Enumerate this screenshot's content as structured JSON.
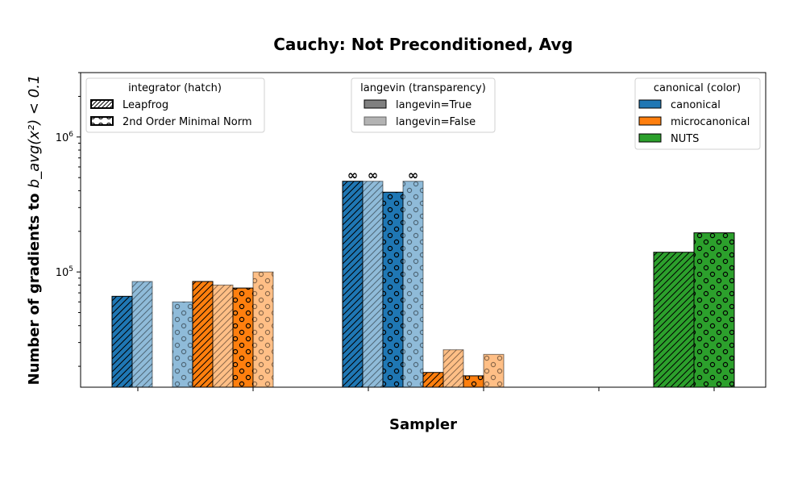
{
  "chart_data": {
    "type": "bar",
    "title": "Cauchy: Not Preconditioned, Avg",
    "xlabel": "Sampler",
    "ylabel_prefix": "Number of gradients to ",
    "ylabel_math": "b_avg(x²) < 0.1",
    "yscale": "log",
    "ylim": [
      14000,
      3000000
    ],
    "y_ticks": [
      {
        "value": 100000,
        "base": "10",
        "exp": "5"
      },
      {
        "value": 1000000,
        "base": "10",
        "exp": "6"
      }
    ],
    "x_tick_count": 6,
    "infinity_symbol": "∞",
    "colors": {
      "canonical": "#1f77b4",
      "microcanonical": "#ff7f0e",
      "NUTS": "#2ca02c"
    },
    "bars": [
      {
        "group": 0,
        "slot": 0,
        "canonical": "canonical",
        "integrator": "Leapfrog",
        "langevin": true,
        "value": 66000,
        "infinite": false
      },
      {
        "group": 0,
        "slot": 1,
        "canonical": "canonical",
        "integrator": "Leapfrog",
        "langevin": false,
        "value": 85000,
        "infinite": false
      },
      {
        "group": 0,
        "slot": 3,
        "canonical": "canonical",
        "integrator": "2nd Order Minimal Norm",
        "langevin": false,
        "value": 60000,
        "infinite": false
      },
      {
        "group": 0,
        "slot": 4,
        "canonical": "microcanonical",
        "integrator": "Leapfrog",
        "langevin": true,
        "value": 85000,
        "infinite": false
      },
      {
        "group": 0,
        "slot": 5,
        "canonical": "microcanonical",
        "integrator": "Leapfrog",
        "langevin": false,
        "value": 80000,
        "infinite": false
      },
      {
        "group": 0,
        "slot": 6,
        "canonical": "microcanonical",
        "integrator": "2nd Order Minimal Norm",
        "langevin": true,
        "value": 76000,
        "infinite": false
      },
      {
        "group": 0,
        "slot": 7,
        "canonical": "microcanonical",
        "integrator": "2nd Order Minimal Norm",
        "langevin": false,
        "value": 100000,
        "infinite": false
      },
      {
        "group": 1,
        "slot": 0,
        "canonical": "canonical",
        "integrator": "Leapfrog",
        "langevin": true,
        "value": 470000,
        "infinite": true
      },
      {
        "group": 1,
        "slot": 1,
        "canonical": "canonical",
        "integrator": "Leapfrog",
        "langevin": false,
        "value": 470000,
        "infinite": true
      },
      {
        "group": 1,
        "slot": 2,
        "canonical": "canonical",
        "integrator": "2nd Order Minimal Norm",
        "langevin": true,
        "value": 390000,
        "infinite": false
      },
      {
        "group": 1,
        "slot": 3,
        "canonical": "canonical",
        "integrator": "2nd Order Minimal Norm",
        "langevin": false,
        "value": 470000,
        "infinite": true
      },
      {
        "group": 1,
        "slot": 4,
        "canonical": "microcanonical",
        "integrator": "Leapfrog",
        "langevin": true,
        "value": 18000,
        "infinite": false
      },
      {
        "group": 1,
        "slot": 5,
        "canonical": "microcanonical",
        "integrator": "Leapfrog",
        "langevin": false,
        "value": 26500,
        "infinite": false
      },
      {
        "group": 1,
        "slot": 6,
        "canonical": "microcanonical",
        "integrator": "2nd Order Minimal Norm",
        "langevin": true,
        "value": 17000,
        "infinite": false
      },
      {
        "group": 1,
        "slot": 7,
        "canonical": "microcanonical",
        "integrator": "2nd Order Minimal Norm",
        "langevin": false,
        "value": 24500,
        "infinite": false
      },
      {
        "group": 2,
        "slot": 4,
        "canonical": "NUTS",
        "integrator": "Leapfrog",
        "langevin": true,
        "value": 140000,
        "infinite": false
      },
      {
        "group": 2,
        "slot": 5,
        "canonical": "NUTS",
        "integrator": "2nd Order Minimal Norm",
        "langevin": true,
        "value": 195000,
        "infinite": false
      }
    ],
    "legends": {
      "integrator": {
        "title": "integrator (hatch)",
        "placement": "top-left",
        "entries": [
          {
            "label": "Leapfrog",
            "hatch": "diagonal"
          },
          {
            "label": "2nd Order Minimal Norm",
            "hatch": "circles"
          }
        ]
      },
      "langevin": {
        "title": "langevin (transparency)",
        "placement": "top-center",
        "entries": [
          {
            "label": "langevin=True",
            "color": "#808080"
          },
          {
            "label": "langevin=False",
            "color": "#b3b3b3"
          }
        ]
      },
      "canonical": {
        "title": "canonical (color)",
        "placement": "top-right",
        "entries": [
          {
            "label": "canonical",
            "color": "#1f77b4"
          },
          {
            "label": "microcanonical",
            "color": "#ff7f0e"
          },
          {
            "label": "NUTS",
            "color": "#2ca02c"
          }
        ]
      }
    }
  }
}
